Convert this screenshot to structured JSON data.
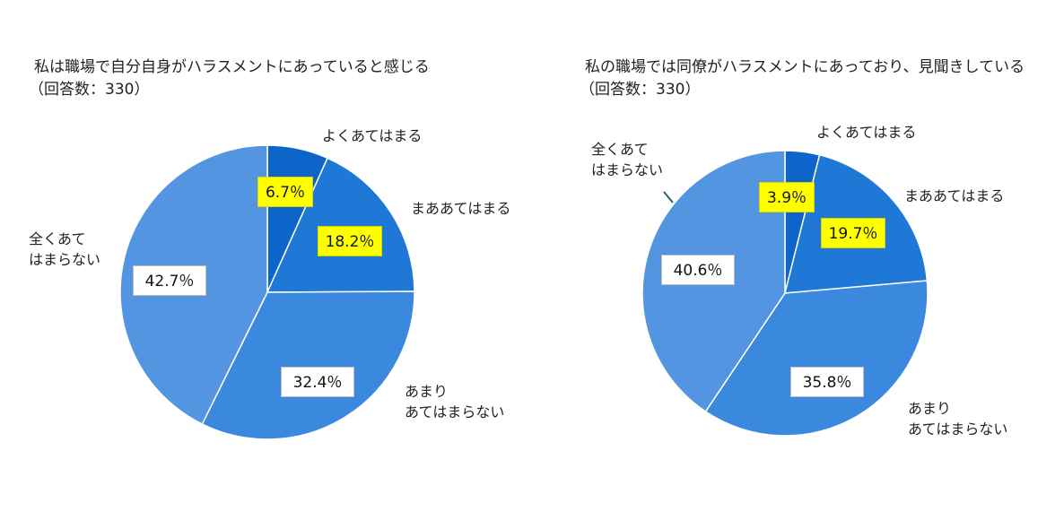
{
  "chart_data": [
    {
      "type": "pie",
      "title": "私は職場で自分自身がハラスメントにあっていると感じる",
      "subtitle": "（回答数：330）",
      "categories": [
        "よくあてはまる",
        "まああてはまる",
        "あまり\nあてはまらない",
        "全くあて\nはまらない"
      ],
      "values": [
        6.7,
        18.2,
        32.4,
        42.7
      ],
      "value_labels": [
        "6.7％",
        "18.2％",
        "32.4％",
        "42.7％"
      ],
      "highlighted": [
        true,
        true,
        false,
        false
      ],
      "colors": [
        "#0e65c9",
        "#1f77d6",
        "#3b89de",
        "#5395e0"
      ],
      "start": "12 o'clock, clockwise"
    },
    {
      "type": "pie",
      "title": "私の職場では同僚がハラスメントにあっており、見聞きしている",
      "subtitle": "（回答数：330）",
      "categories": [
        "よくあてはまる",
        "まああてはまる",
        "あまり\nあてはまらない",
        "全くあて\nはまらない"
      ],
      "values": [
        3.9,
        19.7,
        35.8,
        40.6
      ],
      "value_labels": [
        "3.9％",
        "19.7％",
        "35.8％",
        "40.6％"
      ],
      "highlighted": [
        true,
        true,
        false,
        false
      ],
      "colors": [
        "#0e65c9",
        "#1f77d6",
        "#3b89de",
        "#5395e0"
      ],
      "start": "12 o'clock, clockwise"
    }
  ]
}
